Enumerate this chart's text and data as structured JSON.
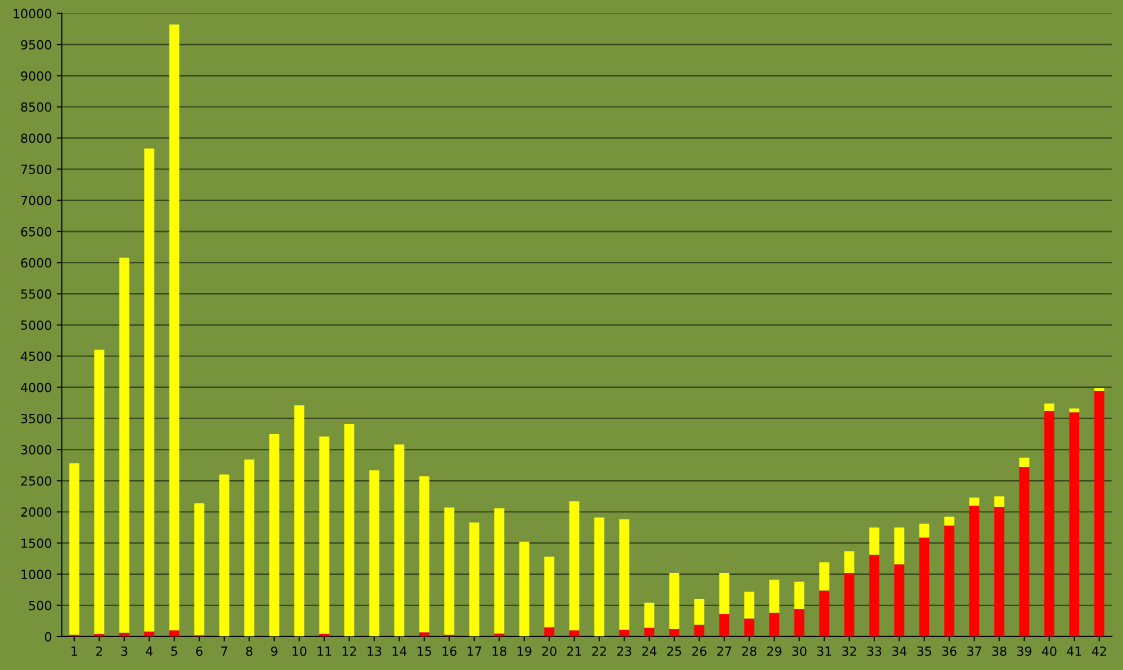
{
  "chart_data": {
    "type": "bar",
    "stacked": true,
    "categories": [
      "1",
      "2",
      "3",
      "4",
      "5",
      "6",
      "7",
      "8",
      "9",
      "10",
      "11",
      "12",
      "13",
      "14",
      "15",
      "16",
      "17",
      "18",
      "19",
      "20",
      "21",
      "22",
      "23",
      "24",
      "25",
      "26",
      "27",
      "28",
      "29",
      "30",
      "31",
      "32",
      "33",
      "34",
      "35",
      "36",
      "37",
      "38",
      "39",
      "40",
      "41",
      "42"
    ],
    "series": [
      {
        "color": "#ff0000",
        "values": [
          30,
          40,
          60,
          80,
          100,
          20,
          0,
          0,
          0,
          null,
          40,
          null,
          null,
          0,
          70,
          30,
          0,
          50,
          0,
          150,
          100,
          0,
          110,
          140,
          120,
          190,
          360,
          290,
          380,
          440,
          740,
          1020,
          1310,
          1160,
          1590,
          1780,
          2100,
          2080,
          2720,
          3620,
          3600,
          3940
        ]
      },
      {
        "color": "#ffff00",
        "values": [
          2750,
          4560,
          6020,
          7750,
          9720,
          2120,
          2600,
          2840,
          3250,
          3710,
          3170,
          3410,
          2670,
          3080,
          2500,
          2040,
          1830,
          2010,
          1520,
          1130,
          2070,
          1910,
          1770,
          400,
          900,
          410,
          660,
          430,
          530,
          440,
          450,
          350,
          440,
          590,
          220,
          140,
          130,
          170,
          150,
          120,
          60,
          50
        ]
      }
    ],
    "ylim": [
      0,
      10000
    ],
    "yticks": [
      0,
      500,
      1000,
      1500,
      2000,
      2500,
      3000,
      3500,
      4000,
      4500,
      5000,
      5500,
      6000,
      6500,
      7000,
      7500,
      8000,
      8500,
      9000,
      9500,
      10000
    ],
    "grid": "y"
  }
}
